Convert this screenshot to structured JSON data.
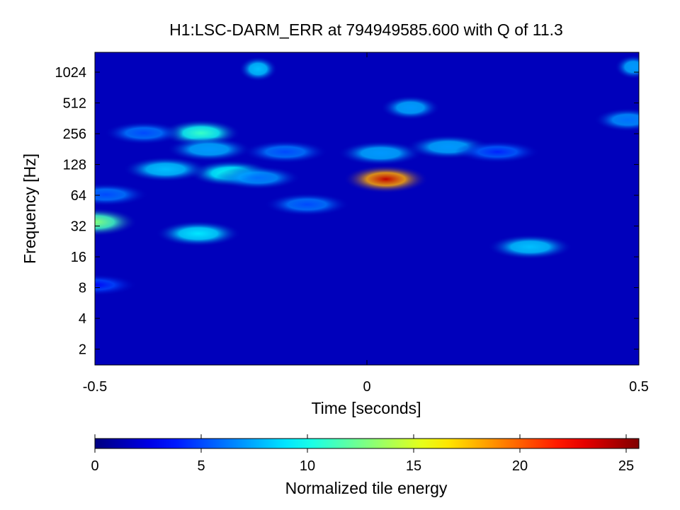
{
  "chart_data": {
    "type": "heatmap",
    "title": "H1:LSC-DARM_ERR at 794949585.600 with Q of 11.3",
    "xlabel": "Time [seconds]",
    "ylabel": "Frequency [Hz]",
    "xlim": [
      -0.5,
      0.5
    ],
    "ylim": [
      1.4,
      1600
    ],
    "yscale": "log2",
    "x_ticks": [
      -0.5,
      0,
      0.5
    ],
    "x_tick_labels": [
      "-0.5",
      "0",
      "0.5"
    ],
    "y_ticks": [
      2,
      4,
      8,
      16,
      32,
      64,
      128,
      256,
      512,
      1024
    ],
    "y_tick_labels": [
      "2",
      "4",
      "8",
      "16",
      "32",
      "64",
      "128",
      "256",
      "512",
      "1024"
    ],
    "colormap": "jet",
    "colorbar": {
      "label": "Normalized tile energy",
      "range": [
        0,
        25.6
      ],
      "ticks": [
        0,
        5,
        10,
        15,
        20,
        25
      ],
      "tick_labels": [
        "0",
        "5",
        "10",
        "15",
        "20",
        "25"
      ]
    },
    "background_energy": 1.5,
    "features": [
      {
        "time": 0.035,
        "frequency": 92,
        "energy": 24
      },
      {
        "time": -0.5,
        "frequency": 35,
        "energy": 13
      },
      {
        "time": -0.31,
        "frequency": 27,
        "energy": 9
      },
      {
        "time": 0.3,
        "frequency": 20,
        "energy": 8
      },
      {
        "time": -0.305,
        "frequency": 260,
        "energy": 11
      },
      {
        "time": -0.25,
        "frequency": 105,
        "energy": 10
      },
      {
        "time": -0.37,
        "frequency": 115,
        "energy": 8
      },
      {
        "time": -0.2,
        "frequency": 95,
        "energy": 6
      },
      {
        "time": -0.29,
        "frequency": 180,
        "energy": 7
      },
      {
        "time": 0.025,
        "frequency": 165,
        "energy": 7
      },
      {
        "time": 0.15,
        "frequency": 190,
        "energy": 7
      },
      {
        "time": 0.08,
        "frequency": 460,
        "energy": 7
      },
      {
        "time": -0.2,
        "frequency": 1100,
        "energy": 8
      },
      {
        "time": 0.49,
        "frequency": 1150,
        "energy": 7
      },
      {
        "time": 0.48,
        "frequency": 350,
        "energy": 6
      },
      {
        "time": -0.11,
        "frequency": 52,
        "energy": 5
      },
      {
        "time": -0.48,
        "frequency": 65,
        "energy": 5
      },
      {
        "time": -0.41,
        "frequency": 260,
        "energy": 5
      },
      {
        "time": -0.15,
        "frequency": 170,
        "energy": 5
      },
      {
        "time": 0.24,
        "frequency": 170,
        "energy": 4
      },
      {
        "time": -0.5,
        "frequency": 8.5,
        "energy": 3
      }
    ]
  }
}
